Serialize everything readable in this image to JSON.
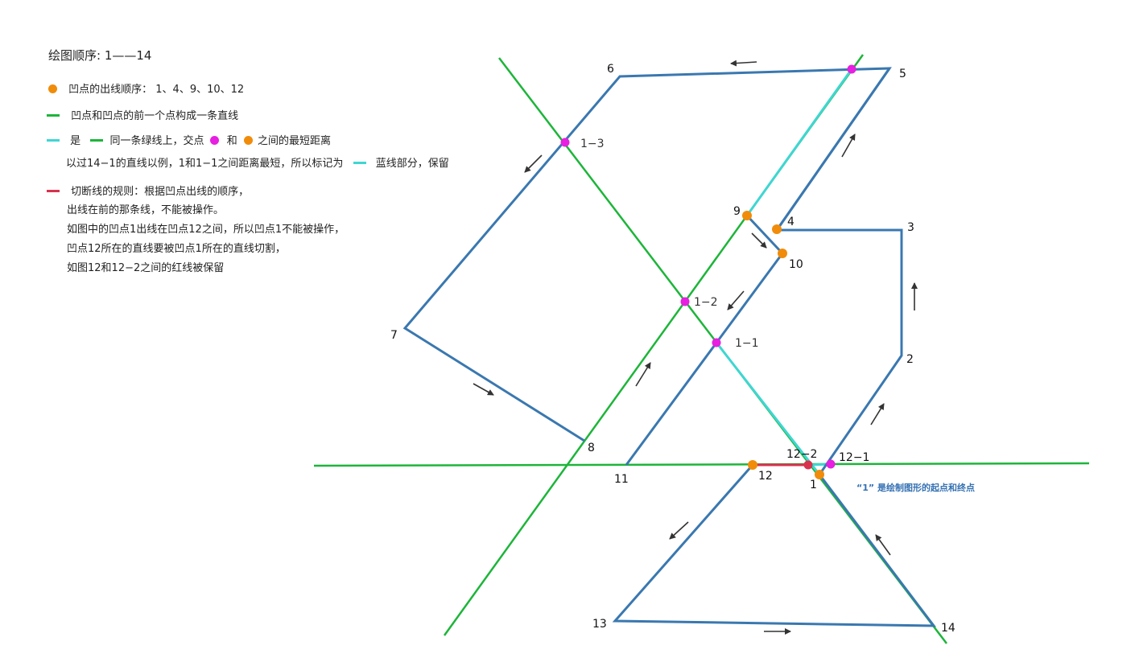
{
  "legend": {
    "title": "绘图顺序: 1——14",
    "orange_text": "凹点的出线顺序：  1、4、9、10、12",
    "green_text": "凹点和凹点的前一个点构成一条直线",
    "cyan_text_a": "是",
    "cyan_text_b": "同一条绿线上，交点",
    "cyan_text_c": "和",
    "cyan_text_d": "之间的最短距离",
    "example_text": "以过14−1的直线以例，1和1−1之间距离最短，所以标记为",
    "example_text_b": "蓝线部分，保留",
    "red_text": "切断线的规则：根据凹点出线的顺序，",
    "rule_line2": "出线在前的那条线，不能被操作。",
    "rule_line3": "如图中的凹点1出线在凹点12之间，所以凹点1不能被操作，",
    "rule_line4": "凹点12所在的直线要被凹点1所在的直线切割，",
    "rule_line5": "如图12和12−2之间的红线被保留"
  },
  "colors": {
    "blue": "#3a78b0",
    "green": "#1db53a",
    "cyan": "#3fd6d3",
    "red": "#d8324e",
    "orange": "#f08c0a",
    "magenta": "#e61fe0",
    "arrow": "#333333"
  },
  "points": {
    "p1": "1",
    "p2": "2",
    "p3": "3",
    "p4": "4",
    "p5": "5",
    "p6": "6",
    "p7": "7",
    "p8": "8",
    "p9": "9",
    "p10": "10",
    "p11": "11",
    "p12": "12",
    "p13": "13",
    "p14": "14",
    "i1_1": "1−1",
    "i1_2": "1−2",
    "i1_3": "1−3",
    "i12_1": "12−1",
    "i12_2": "12−2"
  },
  "note": "“1” 是绘制图形的起点和终点"
}
